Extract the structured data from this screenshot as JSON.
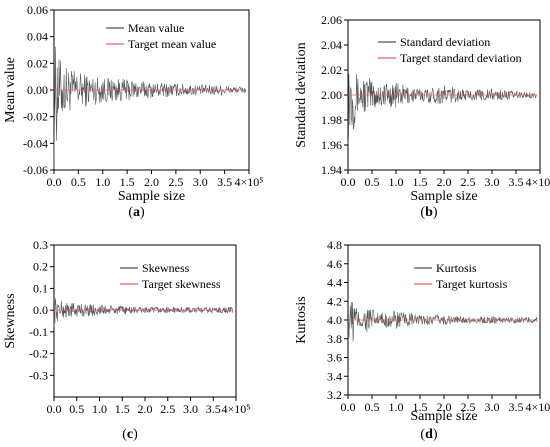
{
  "chart_data": [
    {
      "panel_label": "(a)",
      "type": "line",
      "xlabel": "Sample size",
      "ylabel": "Mean value",
      "xlim": [
        0,
        400000
      ],
      "ylim": [
        -0.06,
        0.06
      ],
      "x_ticks": [
        "0.0",
        "0.5",
        "1.0",
        "1.5",
        "2.0",
        "2.5",
        "3.0",
        "3.5",
        "4×10⁵"
      ],
      "y_ticks": [
        "-0.06",
        "-0.04",
        "-0.02",
        "0.00",
        "0.02",
        "0.04",
        "0.06"
      ],
      "legend_position": "top-right",
      "target": 0.0,
      "series": [
        {
          "name": "Mean value",
          "color": "#555555",
          "x": [
            0,
            2000,
            5000,
            10000,
            20000,
            40000,
            70000,
            100000,
            150000,
            200000,
            250000,
            300000,
            350000,
            400000
          ],
          "y": [
            0.06,
            -0.03,
            0.045,
            -0.025,
            0.02,
            -0.015,
            0.012,
            -0.01,
            0.008,
            -0.006,
            0.005,
            -0.004,
            0.004,
            0.0
          ]
        },
        {
          "name": "Target mean value",
          "color": "#e06666",
          "x": [
            0,
            400000
          ],
          "y": [
            0.0,
            0.0
          ]
        }
      ]
    },
    {
      "panel_label": "(b)",
      "type": "line",
      "xlabel": "Sample size",
      "ylabel": "Standard deviation",
      "xlim": [
        0,
        400000
      ],
      "ylim": [
        1.94,
        2.06
      ],
      "x_ticks": [
        "0.0",
        "0.5",
        "1.0",
        "1.5",
        "2.0",
        "2.5",
        "3.0",
        "3.5",
        "4×10⁵"
      ],
      "y_ticks": [
        "1.94",
        "1.96",
        "1.98",
        "2.00",
        "2.02",
        "2.04",
        "2.06"
      ],
      "legend_position": "top-right",
      "target": 2.0,
      "series": [
        {
          "name": "Standard deviation",
          "color": "#555555",
          "x": [
            0,
            2000,
            5000,
            10000,
            20000,
            40000,
            70000,
            100000,
            150000,
            200000,
            250000,
            300000,
            350000,
            400000
          ],
          "y": [
            1.96,
            2.04,
            1.975,
            2.03,
            1.985,
            2.015,
            1.99,
            2.01,
            1.995,
            2.008,
            1.996,
            2.005,
            1.997,
            2.0
          ]
        },
        {
          "name": "Target standard deviation",
          "color": "#e06666",
          "x": [
            0,
            400000
          ],
          "y": [
            2.0,
            2.0
          ]
        }
      ]
    },
    {
      "panel_label": "(c)",
      "type": "line",
      "xlabel": "",
      "ylabel": "Skewness",
      "xlim": [
        0,
        400000
      ],
      "ylim": [
        -0.4,
        0.3
      ],
      "x_ticks": [
        "0.0",
        "0.5",
        "1.0",
        "1.5",
        "2.0",
        "2.5",
        "3.0",
        "3.5",
        "4×10⁵"
      ],
      "y_ticks": [
        "-0.3",
        "-0.2",
        "-0.1",
        "0.0",
        "0.1",
        "0.2",
        "0.3"
      ],
      "legend_position": "top-right",
      "target": 0.0,
      "series": [
        {
          "name": "Skewness",
          "color": "#555555",
          "x": [
            0,
            2000,
            5000,
            10000,
            20000,
            40000,
            70000,
            100000,
            150000,
            200000,
            250000,
            300000,
            350000,
            400000
          ],
          "y": [
            0.08,
            -0.06,
            0.06,
            -0.05,
            0.04,
            -0.035,
            0.03,
            -0.025,
            0.02,
            -0.015,
            0.012,
            -0.01,
            0.008,
            0.0
          ]
        },
        {
          "name": "Target skewness",
          "color": "#e06666",
          "x": [
            0,
            400000
          ],
          "y": [
            0.0,
            0.0
          ]
        }
      ]
    },
    {
      "panel_label": "(d)",
      "type": "line",
      "xlabel": "Sample size",
      "ylabel": "Kurtosis",
      "xlim": [
        0,
        400000
      ],
      "ylim": [
        3.2,
        4.8
      ],
      "x_ticks": [
        "0.0",
        "0.5",
        "1.0",
        "1.5",
        "2.0",
        "2.5",
        "3.0",
        "3.5",
        "4×10⁵"
      ],
      "y_ticks": [
        "3.2",
        "3.4",
        "3.6",
        "3.8",
        "4.0",
        "4.2",
        "4.4",
        "4.6",
        "4.8"
      ],
      "legend_position": "top-right",
      "target": 4.0,
      "series": [
        {
          "name": "Kurtosis",
          "color": "#555555",
          "x": [
            0,
            2000,
            5000,
            10000,
            20000,
            40000,
            70000,
            100000,
            150000,
            200000,
            250000,
            300000,
            350000,
            400000
          ],
          "y": [
            3.8,
            4.5,
            3.85,
            4.3,
            3.9,
            4.15,
            3.92,
            4.1,
            3.95,
            4.06,
            3.97,
            4.04,
            3.98,
            4.0
          ]
        },
        {
          "name": "Target kurtosis",
          "color": "#e06666",
          "x": [
            0,
            400000
          ],
          "y": [
            4.0,
            4.0
          ]
        }
      ]
    }
  ]
}
